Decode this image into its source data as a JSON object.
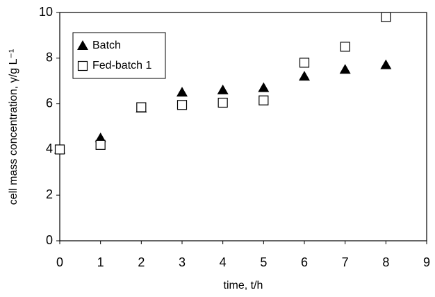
{
  "chart_data": {
    "type": "scatter",
    "x_label": "time, t/h",
    "y_label": "cell mass concentration, γ/g L⁻¹",
    "x": [
      0,
      1,
      2,
      3,
      4,
      5,
      6,
      7,
      8
    ],
    "series": [
      {
        "name": "Batch",
        "color": "#000000",
        "marker": "triangle",
        "values": [
          4.0,
          4.5,
          5.8,
          6.5,
          6.6,
          6.7,
          7.2,
          7.5,
          7.7
        ]
      },
      {
        "name": "Fed-batch 1",
        "color": "#000000",
        "marker": "square",
        "values": [
          4.0,
          4.2,
          5.85,
          5.95,
          6.05,
          6.15,
          7.8,
          8.5,
          9.8
        ]
      }
    ],
    "xlim": [
      0,
      9
    ],
    "xticks": [
      0,
      1,
      2,
      3,
      4,
      5,
      6,
      7,
      8,
      9
    ],
    "ylim": [
      0,
      10
    ],
    "yticks": [
      0,
      2,
      4,
      6,
      8,
      10
    ],
    "grid": false,
    "legend": "upper left"
  }
}
